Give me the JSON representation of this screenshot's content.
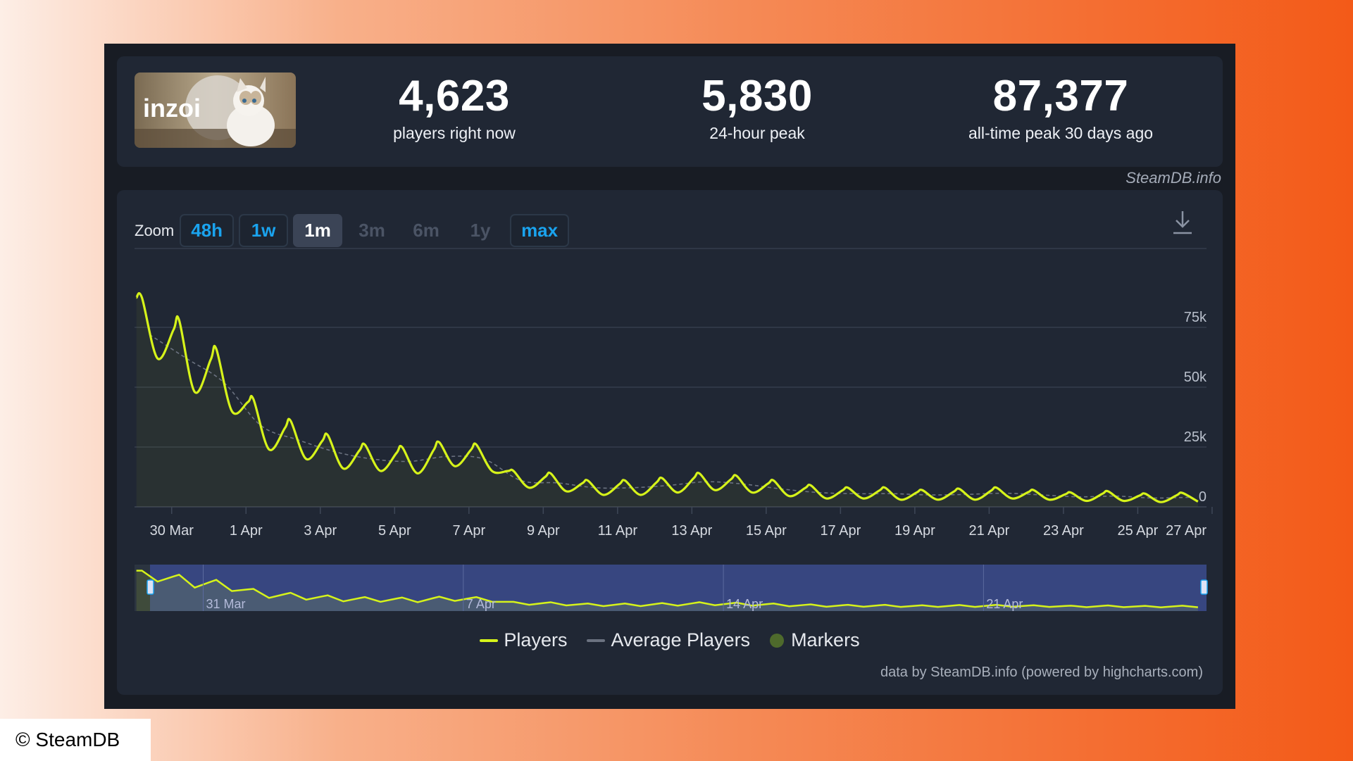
{
  "game": {
    "logo_text": "inzoi",
    "logo_icon": "cat-in-moon-banner"
  },
  "stats": [
    {
      "value": "4,623",
      "label": "players right now"
    },
    {
      "value": "5,830",
      "label": "24-hour peak"
    },
    {
      "value": "87,377",
      "label": "all-time peak 30 days ago"
    }
  ],
  "watermark": "SteamDB.info",
  "zoom": {
    "label": "Zoom",
    "buttons": [
      {
        "label": "48h",
        "state": "active"
      },
      {
        "label": "1w",
        "state": "active"
      },
      {
        "label": "1m",
        "state": "selected"
      },
      {
        "label": "3m",
        "state": "disabled"
      },
      {
        "label": "6m",
        "state": "disabled"
      },
      {
        "label": "1y",
        "state": "disabled"
      },
      {
        "label": "max",
        "state": "active"
      }
    ]
  },
  "download_icon": "download-icon",
  "chart_data": {
    "type": "line",
    "x_start": "29 Mar",
    "x_end": "27 Apr",
    "xticks": [
      "30 Mar",
      "1 Apr",
      "3 Apr",
      "5 Apr",
      "7 Apr",
      "9 Apr",
      "11 Apr",
      "13 Apr",
      "15 Apr",
      "17 Apr",
      "19 Apr",
      "21 Apr",
      "23 Apr",
      "25 Apr",
      "27 Apr"
    ],
    "yticks": [
      "0",
      "25k",
      "50k",
      "75k"
    ],
    "ylim": [
      0,
      100000
    ],
    "grid": true,
    "series": [
      {
        "name": "Players",
        "color": "#d6f31a",
        "daily_peaks": [
          87377,
          78000,
          66000,
          45000,
          36000,
          30000,
          26000,
          25000,
          27000,
          26000,
          15000,
          14000,
          11000,
          11000,
          12000,
          14000,
          13000,
          11000,
          9000,
          8000,
          8000,
          7000,
          7500,
          8000,
          7000,
          6000,
          6500,
          5500,
          5830,
          5830
        ],
        "daily_lows": [
          62000,
          48000,
          40000,
          24000,
          20000,
          16000,
          15000,
          14000,
          17000,
          15000,
          8000,
          6500,
          5000,
          5000,
          6000,
          7000,
          6000,
          4500,
          3500,
          3500,
          3000,
          3000,
          3000,
          3500,
          3000,
          2500,
          2500,
          2000,
          2200,
          3000
        ]
      },
      {
        "name": "Average Players",
        "color": "#6b7280",
        "daily_values": [
          72000,
          62000,
          52000,
          34000,
          28000,
          23000,
          20000,
          19000,
          21000,
          20000,
          11000,
          10000,
          8000,
          8000,
          9000,
          10500,
          9500,
          7500,
          6000,
          5500,
          5500,
          5000,
          5200,
          5700,
          5000,
          4200,
          4500,
          3700,
          4000,
          4400
        ]
      }
    ],
    "navigator": {
      "labels": [
        "31 Mar",
        "7 Apr",
        "14 Apr",
        "21 Apr"
      ]
    },
    "legend": [
      {
        "name": "Players",
        "color": "#d6f31a",
        "shape": "line"
      },
      {
        "name": "Average Players",
        "color": "#6b7280",
        "shape": "line"
      },
      {
        "name": "Markers",
        "color": "#4e6a2c",
        "shape": "dot"
      }
    ],
    "legend_position": "bottom-center"
  },
  "credits": "data by SteamDB.info (powered by highcharts.com)",
  "copyright": "© SteamDB"
}
